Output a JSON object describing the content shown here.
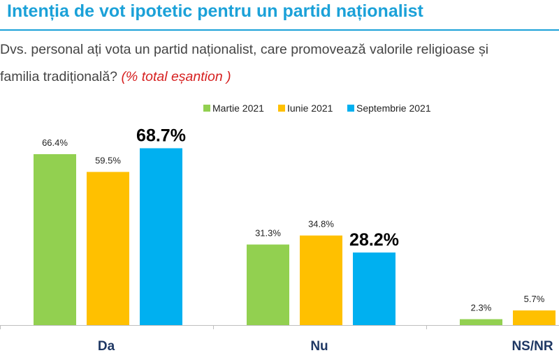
{
  "title": "Intenția de vot ipotetic pentru un partid naționalist",
  "question": {
    "line1": "Dvs. personal ați vota un partid naționalist, care promovează valorile religioase și",
    "line2": "familia tradițională?",
    "note": "(% total eșantion )"
  },
  "colors": {
    "title": "#1ba1d8",
    "note": "#d62020",
    "series": [
      "#92d050",
      "#ffc000",
      "#00b0f0"
    ]
  },
  "chart_data": {
    "type": "bar",
    "title": "",
    "xlabel": "",
    "ylabel": "",
    "categories": [
      "Da",
      "Nu",
      "NS/NR"
    ],
    "series": [
      {
        "name": "Martie 2021",
        "values": [
          66.4,
          31.3,
          2.3
        ],
        "labels": [
          "66.4%",
          "31.3%",
          "2.3%"
        ]
      },
      {
        "name": "Iunie 2021",
        "values": [
          59.5,
          34.8,
          5.7
        ],
        "labels": [
          "59.5%",
          "34.8%",
          "5.7%"
        ]
      },
      {
        "name": "Septembrie 2021",
        "values": [
          68.7,
          28.2,
          null
        ],
        "labels": [
          "68.7%",
          "28.2%",
          ""
        ]
      }
    ],
    "ylim": [
      0,
      100
    ],
    "grid": false,
    "legend_position": "top-center",
    "highlighted_series": "Septembrie 2021"
  }
}
